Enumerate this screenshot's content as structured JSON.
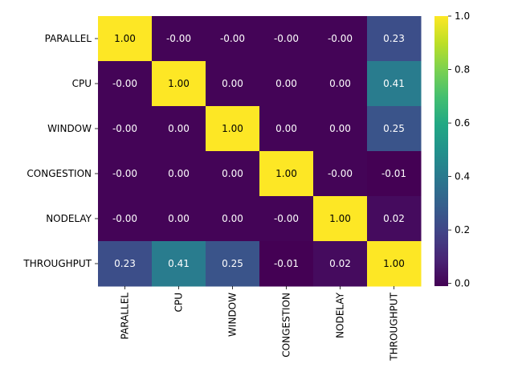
{
  "chart_data": {
    "type": "heatmap",
    "title": "",
    "xlabel": "",
    "ylabel": "",
    "row_labels": [
      "PARALLEL",
      "CPU",
      "WINDOW",
      "CONGESTION",
      "NODELAY",
      "THROUGHPUT"
    ],
    "col_labels": [
      "PARALLEL",
      "CPU",
      "WINDOW",
      "CONGESTION",
      "NODELAY",
      "THROUGHPUT"
    ],
    "matrix": [
      [
        1.0,
        -0.0,
        -0.0,
        -0.0,
        -0.0,
        0.23
      ],
      [
        -0.0,
        1.0,
        0.0,
        0.0,
        0.0,
        0.41
      ],
      [
        -0.0,
        0.0,
        1.0,
        0.0,
        0.0,
        0.25
      ],
      [
        -0.0,
        0.0,
        0.0,
        1.0,
        -0.0,
        -0.01
      ],
      [
        -0.0,
        0.0,
        0.0,
        -0.0,
        1.0,
        0.02
      ],
      [
        0.23,
        0.41,
        0.25,
        -0.01,
        0.02,
        1.0
      ]
    ],
    "cell_labels": [
      [
        "1.00",
        "-0.00",
        "-0.00",
        "-0.00",
        "-0.00",
        "0.23"
      ],
      [
        "-0.00",
        "1.00",
        "0.00",
        "0.00",
        "0.00",
        "0.41"
      ],
      [
        "-0.00",
        "0.00",
        "1.00",
        "0.00",
        "0.00",
        "0.25"
      ],
      [
        "-0.00",
        "0.00",
        "0.00",
        "1.00",
        "-0.00",
        "-0.01"
      ],
      [
        "-0.00",
        "0.00",
        "0.00",
        "-0.00",
        "1.00",
        "0.02"
      ],
      [
        "0.23",
        "0.41",
        "0.25",
        "-0.01",
        "0.02",
        "1.00"
      ]
    ],
    "colormap": "viridis",
    "vmin": -0.01,
    "vmax": 1.0,
    "colorbar": {
      "ticks": [
        0.0,
        0.2,
        0.4,
        0.6,
        0.8,
        1.0
      ],
      "tick_labels": [
        "0.0",
        "0.2",
        "0.4",
        "0.6",
        "0.8",
        "1.0"
      ]
    },
    "annotation_dark_text_color": "#000000",
    "annotation_light_text_color": "#ffffff"
  }
}
